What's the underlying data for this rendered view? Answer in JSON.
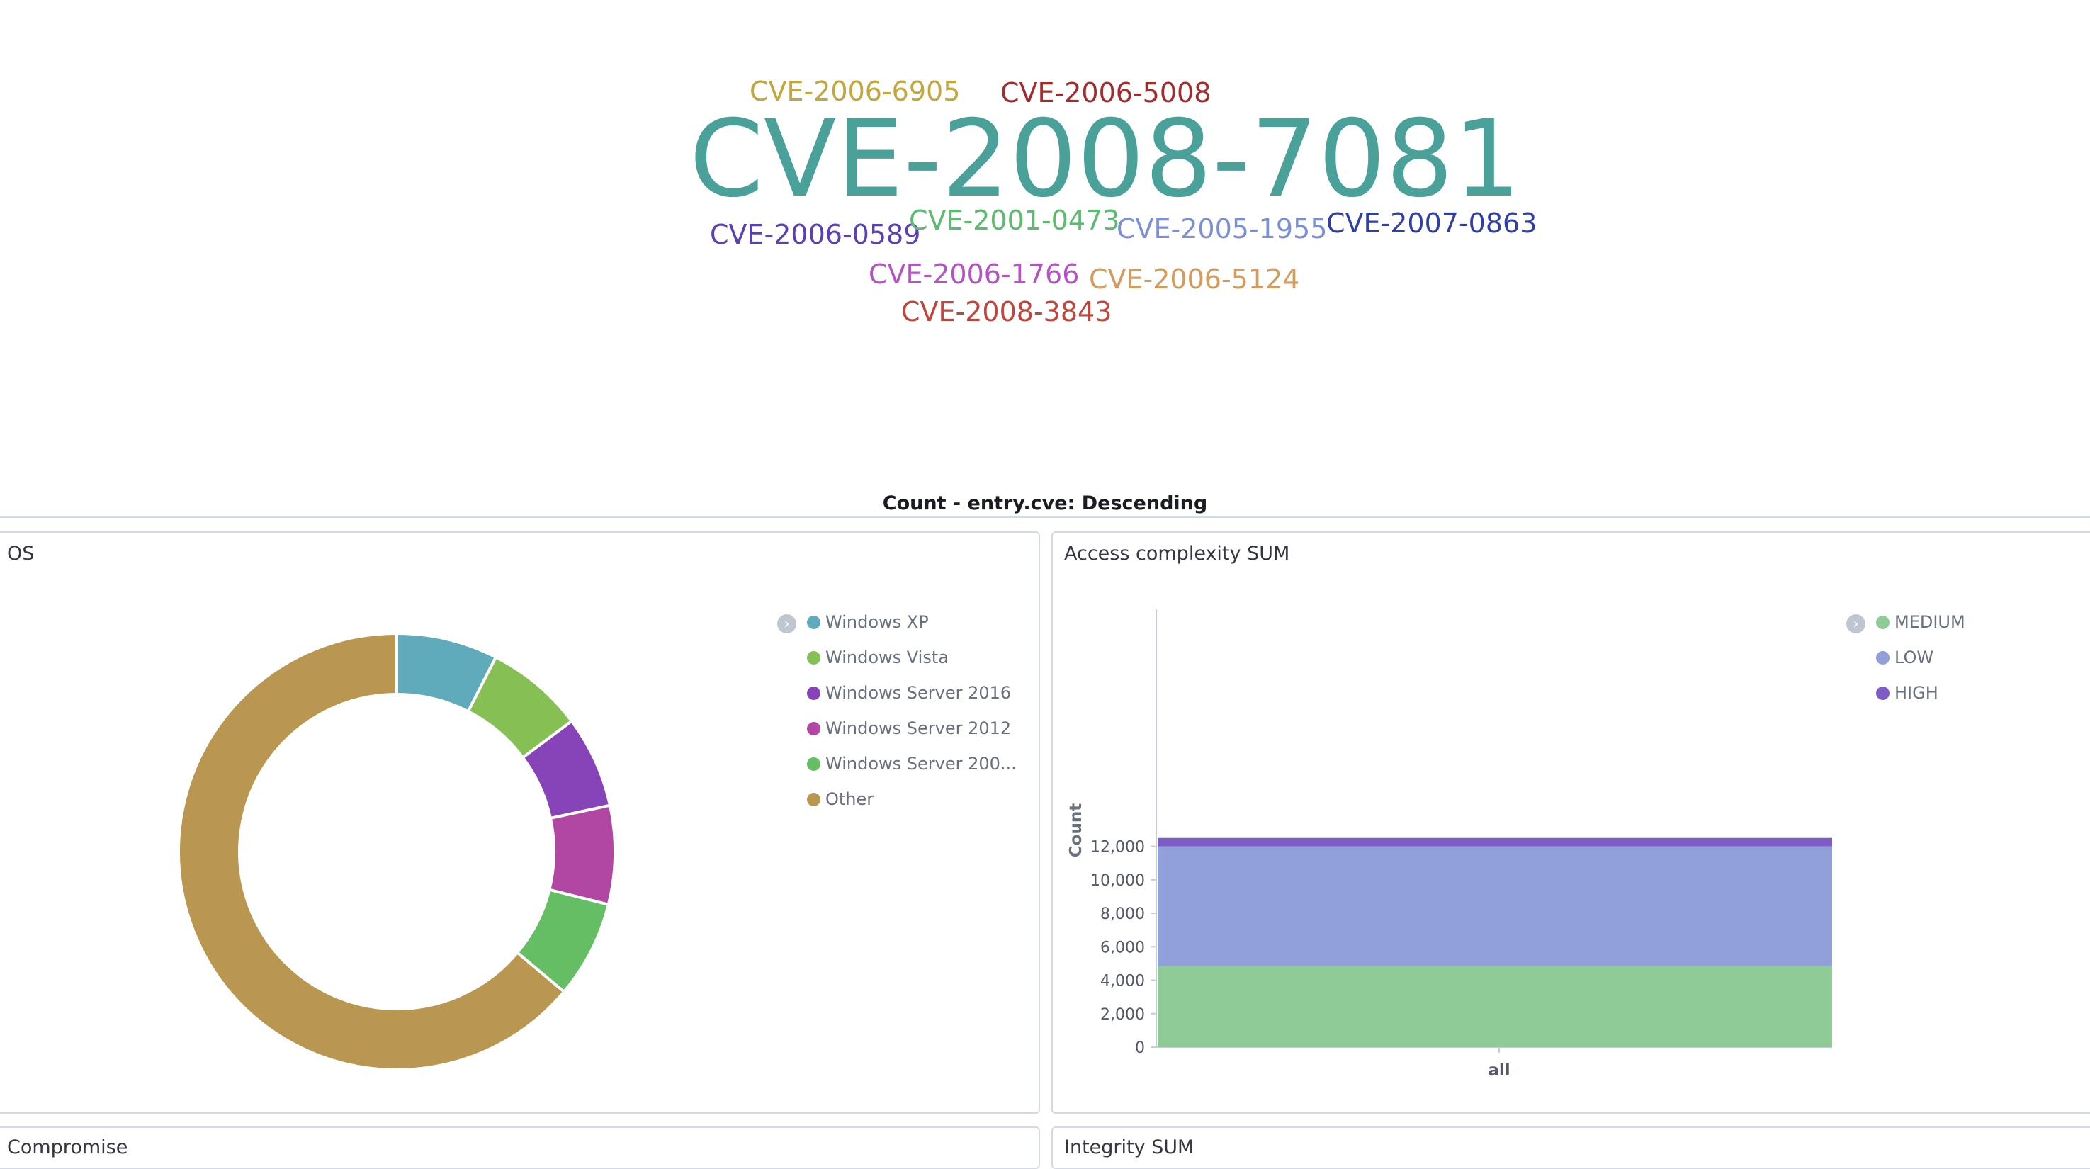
{
  "word_cloud": {
    "caption": "Count - entry.cve: Descending",
    "words": [
      {
        "text": "CVE-2008-7081",
        "color": "#4aa19a"
      },
      {
        "text": "CVE-2006-6905",
        "color": "#c3a63d"
      },
      {
        "text": "CVE-2006-5008",
        "color": "#a22c2c"
      },
      {
        "text": "CVE-2006-0589",
        "color": "#5a3fb8"
      },
      {
        "text": "CVE-2001-0473",
        "color": "#5dbb6f"
      },
      {
        "text": "CVE-2005-1955",
        "color": "#7b8fd8"
      },
      {
        "text": "CVE-2007-0863",
        "color": "#2f3fa8"
      },
      {
        "text": "CVE-2006-1766",
        "color": "#b552c4"
      },
      {
        "text": "CVE-2006-5124",
        "color": "#d69a5a"
      },
      {
        "text": "CVE-2008-3843",
        "color": "#c0453c"
      }
    ]
  },
  "os_panel": {
    "title": "OS",
    "legend": [
      {
        "label": "Windows XP",
        "color": "#5fabbb"
      },
      {
        "label": "Windows Vista",
        "color": "#86bf53"
      },
      {
        "label": "Windows Server 2016",
        "color": "#8744b8"
      },
      {
        "label": "Windows Server 2012",
        "color": "#b146a3"
      },
      {
        "label": "Windows Server 200...",
        "color": "#65bd64"
      },
      {
        "label": "Other",
        "color": "#b99750"
      }
    ]
  },
  "access_panel": {
    "title": "Access complexity SUM",
    "legend": [
      {
        "label": "MEDIUM",
        "color": "#8fcb96"
      },
      {
        "label": "LOW",
        "color": "#919fdb"
      },
      {
        "label": "HIGH",
        "color": "#7e5cc8"
      }
    ]
  },
  "lower_panels": {
    "left_title": "Compromise",
    "right_title": "Integrity SUM"
  },
  "chart_data": [
    {
      "type": "pie",
      "title": "OS",
      "donut": true,
      "categories": [
        "Windows XP",
        "Windows Vista",
        "Windows Server 2016",
        "Windows Server 2012",
        "Windows Server 200...",
        "Other"
      ],
      "values": [
        7.5,
        7.3,
        6.8,
        7.3,
        7.2,
        63.9
      ],
      "colors": [
        "#5fabbb",
        "#86bf53",
        "#8744b8",
        "#b146a3",
        "#65bd64",
        "#b99750"
      ]
    },
    {
      "type": "bar",
      "stacked": true,
      "title": "Access complexity SUM",
      "xlabel": "",
      "ylabel": "Count",
      "categories": [
        "all"
      ],
      "ylim": [
        0,
        13000
      ],
      "yticks": [
        0,
        2000,
        4000,
        6000,
        8000,
        10000,
        12000
      ],
      "ytick_labels": [
        "0",
        "2,000",
        "4,000",
        "6,000",
        "8,000",
        "10,000",
        "12,000"
      ],
      "series": [
        {
          "name": "MEDIUM",
          "values": [
            4850
          ],
          "color": "#8fcb96"
        },
        {
          "name": "LOW",
          "values": [
            7150
          ],
          "color": "#919fdb"
        },
        {
          "name": "HIGH",
          "values": [
            500
          ],
          "color": "#7e5cc8"
        }
      ]
    }
  ]
}
